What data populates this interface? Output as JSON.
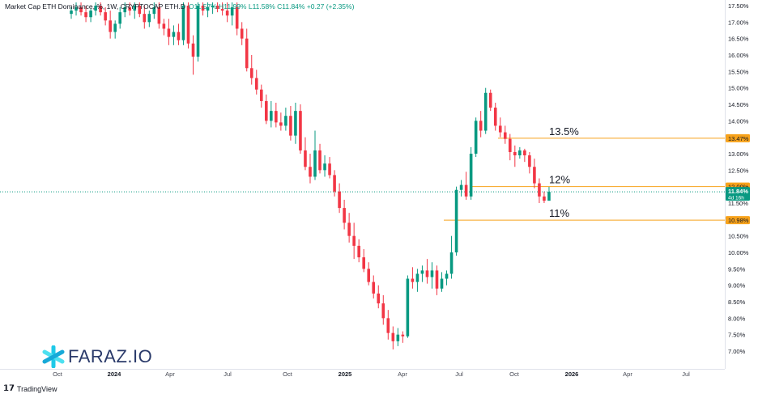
{
  "header": {
    "symbol": "Market Cap ETH Dominance, %, 1W, CRYPTOCAP ETH.D",
    "ohlc": "O11.57% H11.99% L11.58% C11.84% +0.27 (+2.35%)"
  },
  "watermark": "FARAZ.IO",
  "footer": "TradingView",
  "colors": {
    "up": "#089981",
    "down": "#f23645",
    "level": "#f7a21b",
    "price_label": "#089981",
    "watermark": "#2a3a6a"
  },
  "chart_data": {
    "type": "candlestick",
    "title": "Market Cap ETH Dominance, %, 1W",
    "ylabel": "%",
    "ylim": [
      6.8,
      17.55
    ],
    "y_ticks": [
      "17.50%",
      "17.00%",
      "16.50%",
      "16.00%",
      "15.50%",
      "15.00%",
      "14.50%",
      "14.00%",
      "13.50%",
      "13.00%",
      "12.50%",
      "12.00%",
      "11.50%",
      "11.00%",
      "10.50%",
      "10.00%",
      "9.50%",
      "9.00%",
      "8.50%",
      "8.00%",
      "7.50%",
      "7.00%"
    ],
    "x_ticks": [
      "Oct",
      "2024",
      "Apr",
      "Jul",
      "Oct",
      "2025",
      "Apr",
      "Jul",
      "Oct",
      "2026",
      "Apr",
      "Jul"
    ],
    "current_price": "11.84%",
    "countdown": "4d 16h",
    "levels": [
      {
        "value": 13.47,
        "label": "13.47%",
        "annotation": "13.5%"
      },
      {
        "value": 12.0,
        "label": "12.00%",
        "annotation": "12%"
      },
      {
        "value": 10.98,
        "label": "10.98%",
        "annotation": "11%"
      }
    ],
    "candles": [
      [
        17.25,
        17.45,
        17.1,
        17.35
      ],
      [
        17.35,
        17.6,
        17.2,
        17.45
      ],
      [
        17.45,
        17.6,
        17.2,
        17.3
      ],
      [
        17.3,
        17.5,
        17.0,
        17.15
      ],
      [
        17.15,
        17.4,
        17.0,
        17.35
      ],
      [
        17.35,
        17.6,
        17.2,
        17.5
      ],
      [
        17.5,
        17.6,
        17.2,
        17.3
      ],
      [
        17.3,
        17.45,
        16.9,
        17.05
      ],
      [
        17.05,
        17.35,
        16.5,
        16.7
      ],
      [
        16.7,
        17.05,
        16.5,
        16.95
      ],
      [
        16.95,
        17.45,
        16.8,
        17.3
      ],
      [
        17.3,
        17.6,
        17.15,
        17.45
      ],
      [
        17.45,
        17.6,
        17.2,
        17.35
      ],
      [
        17.35,
        17.6,
        17.1,
        17.5
      ],
      [
        17.5,
        17.6,
        17.15,
        17.25
      ],
      [
        17.25,
        17.5,
        16.8,
        17.0
      ],
      [
        17.0,
        17.35,
        16.85,
        17.25
      ],
      [
        17.25,
        17.6,
        17.1,
        17.45
      ],
      [
        17.45,
        17.6,
        16.8,
        16.95
      ],
      [
        16.95,
        17.1,
        16.6,
        16.8
      ],
      [
        16.8,
        17.1,
        16.3,
        16.55
      ],
      [
        16.55,
        16.9,
        16.3,
        16.7
      ],
      [
        16.7,
        16.95,
        16.3,
        16.45
      ],
      [
        16.45,
        17.6,
        16.3,
        17.5
      ],
      [
        17.5,
        17.6,
        16.2,
        16.35
      ],
      [
        16.35,
        16.6,
        15.4,
        15.95
      ],
      [
        15.95,
        17.6,
        15.8,
        17.5
      ],
      [
        17.5,
        17.6,
        17.2,
        17.35
      ],
      [
        17.35,
        17.6,
        17.15,
        17.45
      ],
      [
        17.45,
        17.6,
        17.25,
        17.5
      ],
      [
        17.5,
        17.6,
        17.3,
        17.4
      ],
      [
        17.4,
        17.6,
        17.2,
        17.35
      ],
      [
        17.35,
        17.6,
        17.0,
        17.2
      ],
      [
        17.2,
        17.6,
        16.9,
        17.45
      ],
      [
        17.45,
        17.6,
        16.6,
        16.8
      ],
      [
        16.8,
        17.0,
        16.3,
        16.5
      ],
      [
        16.5,
        16.8,
        15.5,
        15.6
      ],
      [
        15.6,
        16.0,
        15.1,
        15.3
      ],
      [
        15.3,
        15.55,
        14.8,
        14.95
      ],
      [
        14.95,
        15.1,
        14.4,
        14.6
      ],
      [
        14.6,
        14.8,
        13.9,
        14.0
      ],
      [
        14.0,
        14.6,
        13.8,
        14.3
      ],
      [
        14.3,
        14.55,
        13.8,
        13.95
      ],
      [
        13.95,
        14.25,
        13.7,
        13.85
      ],
      [
        13.85,
        14.4,
        13.7,
        14.15
      ],
      [
        14.15,
        14.45,
        13.4,
        13.55
      ],
      [
        13.55,
        14.55,
        13.3,
        14.3
      ],
      [
        14.3,
        14.5,
        13.0,
        13.1
      ],
      [
        13.1,
        13.5,
        12.5,
        12.6
      ],
      [
        12.6,
        13.0,
        12.1,
        12.3
      ],
      [
        12.3,
        13.7,
        12.2,
        13.1
      ],
      [
        13.1,
        13.3,
        12.4,
        12.5
      ],
      [
        12.5,
        12.95,
        12.3,
        12.7
      ],
      [
        12.7,
        12.9,
        12.25,
        12.35
      ],
      [
        12.35,
        12.5,
        11.7,
        11.85
      ],
      [
        11.85,
        12.1,
        11.2,
        11.35
      ],
      [
        11.35,
        11.6,
        10.7,
        10.9
      ],
      [
        10.9,
        11.2,
        10.3,
        10.5
      ],
      [
        10.5,
        10.9,
        9.8,
        10.2
      ],
      [
        10.2,
        10.4,
        9.7,
        9.85
      ],
      [
        9.85,
        10.1,
        9.4,
        9.5
      ],
      [
        9.5,
        9.7,
        9.0,
        9.1
      ],
      [
        9.1,
        9.3,
        8.6,
        8.75
      ],
      [
        8.75,
        9.0,
        8.3,
        8.45
      ],
      [
        8.45,
        8.7,
        7.8,
        8.0
      ],
      [
        8.0,
        8.25,
        7.35,
        7.55
      ],
      [
        7.55,
        7.75,
        7.05,
        7.3
      ],
      [
        7.3,
        7.7,
        7.15,
        7.5
      ],
      [
        7.5,
        7.6,
        7.25,
        7.45
      ],
      [
        7.45,
        9.3,
        7.4,
        9.2
      ],
      [
        9.2,
        9.55,
        8.9,
        9.1
      ],
      [
        9.1,
        9.5,
        8.8,
        9.35
      ],
      [
        9.35,
        9.6,
        9.1,
        9.45
      ],
      [
        9.45,
        9.8,
        9.05,
        9.25
      ],
      [
        9.25,
        9.7,
        8.9,
        9.45
      ],
      [
        9.45,
        9.6,
        8.7,
        8.9
      ],
      [
        8.9,
        9.4,
        8.8,
        9.2
      ],
      [
        9.2,
        9.45,
        9.0,
        9.35
      ],
      [
        9.35,
        10.5,
        9.2,
        10.0
      ],
      [
        10.0,
        12.0,
        9.9,
        11.9
      ],
      [
        11.9,
        12.2,
        11.7,
        12.05
      ],
      [
        12.05,
        12.45,
        11.6,
        11.7
      ],
      [
        11.7,
        13.2,
        11.6,
        13.0
      ],
      [
        13.0,
        14.1,
        12.9,
        14.0
      ],
      [
        14.0,
        14.3,
        13.5,
        13.7
      ],
      [
        13.7,
        15.0,
        13.6,
        14.85
      ],
      [
        14.85,
        14.95,
        14.3,
        14.4
      ],
      [
        14.4,
        14.55,
        13.7,
        13.85
      ],
      [
        13.85,
        14.1,
        13.5,
        13.65
      ],
      [
        13.65,
        13.85,
        13.3,
        13.45
      ],
      [
        13.45,
        13.6,
        12.8,
        13.05
      ],
      [
        13.05,
        13.25,
        12.6,
        12.95
      ],
      [
        12.95,
        13.2,
        12.85,
        13.1
      ],
      [
        13.1,
        13.15,
        12.75,
        12.95
      ],
      [
        12.95,
        13.05,
        12.4,
        12.6
      ],
      [
        12.6,
        12.85,
        11.95,
        12.1
      ],
      [
        12.1,
        12.25,
        11.5,
        11.7
      ],
      [
        11.7,
        11.85,
        11.5,
        11.57
      ],
      [
        11.57,
        11.99,
        11.58,
        11.84
      ]
    ]
  }
}
